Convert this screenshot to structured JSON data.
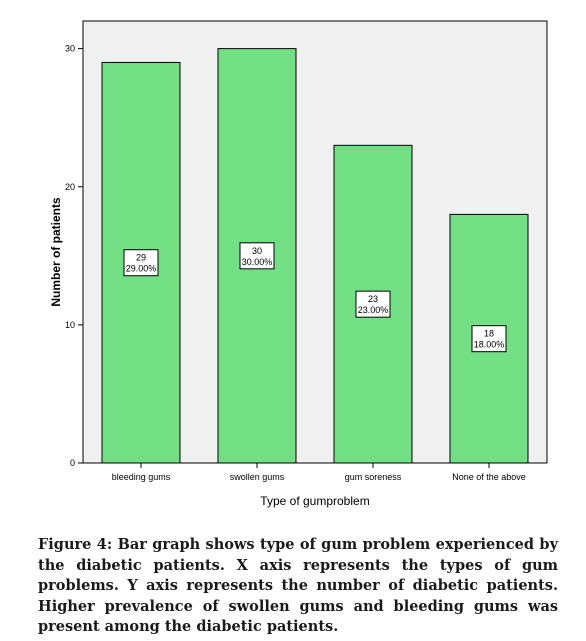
{
  "chart_data": {
    "type": "bar",
    "categories": [
      "bleeding gums",
      "swollen gums",
      "gum soreness",
      "None of the above"
    ],
    "values": [
      29,
      30,
      23,
      18
    ],
    "data_labels": [
      {
        "count": "29",
        "percent": "29.00%"
      },
      {
        "count": "30",
        "percent": "30.00%"
      },
      {
        "count": "23",
        "percent": "23.00%"
      },
      {
        "count": "18",
        "percent": "18.00%"
      }
    ],
    "xlabel": "Type of gumproblem",
    "ylabel": "Number of patients",
    "ylim": [
      0,
      32
    ],
    "yticks": [
      0,
      10,
      20,
      30
    ],
    "grid": false,
    "colors": {
      "bar_fill": "#73df85",
      "bar_stroke": "#000000",
      "plot_background": "#f0f0f0"
    }
  },
  "caption": "Figure 4: Bar graph shows type of gum problem experienced by the diabetic patients. X axis represents the types of gum problems. Y axis represents the number of diabetic patients. Higher prevalence of swollen gums and bleeding gums was present among the diabetic patients."
}
